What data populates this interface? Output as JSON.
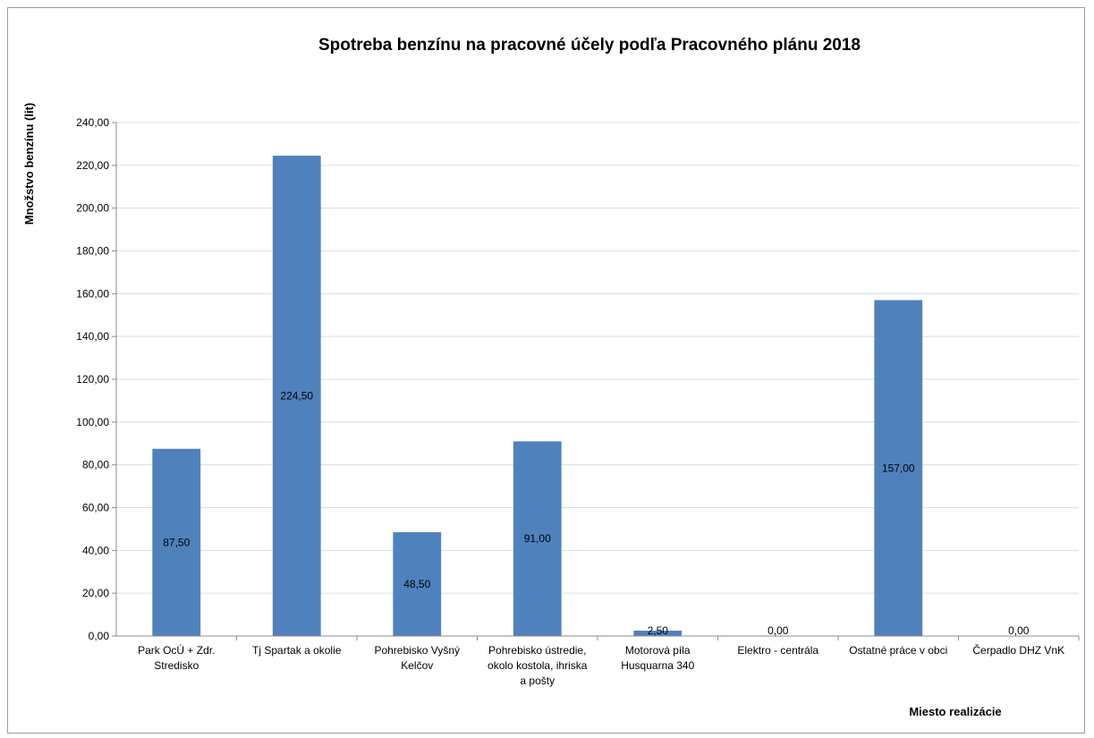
{
  "chart_data": {
    "type": "bar",
    "title": "Spotreba benzínu na pracovné účely podľa Pracovného plánu 2018",
    "xlabel": "Miesto realizácie",
    "ylabel": "Množstvo benzínu (lit)",
    "ylim": [
      0,
      240
    ],
    "ytick_step": 20,
    "ytick_labels": [
      "0,00",
      "20,00",
      "40,00",
      "60,00",
      "80,00",
      "100,00",
      "120,00",
      "140,00",
      "160,00",
      "180,00",
      "200,00",
      "220,00",
      "240,00"
    ],
    "grid": true,
    "legend": "none",
    "bar_color": "#4f81bd",
    "categories": [
      [
        "Park OcÚ + Zdr.",
        "Stredisko"
      ],
      [
        "Tj Spartak a okolie"
      ],
      [
        "Pohrebisko Vyšný",
        "Kelčov"
      ],
      [
        "Pohrebisko ústredie,",
        "okolo kostola, ihriska",
        "a pošty"
      ],
      [
        "Motorová píla",
        "Husquarna 340"
      ],
      [
        "Elektro - centrála"
      ],
      [
        "Ostatné práce v obci"
      ],
      [
        "Čerpadlo DHZ VnK"
      ]
    ],
    "values": [
      87.5,
      224.5,
      48.5,
      91.0,
      2.5,
      0.0,
      157.0,
      0.0
    ],
    "data_labels": [
      "87,50",
      "224,50",
      "48,50",
      "91,00",
      "2,50",
      "0,00",
      "157,00",
      "0,00"
    ]
  }
}
